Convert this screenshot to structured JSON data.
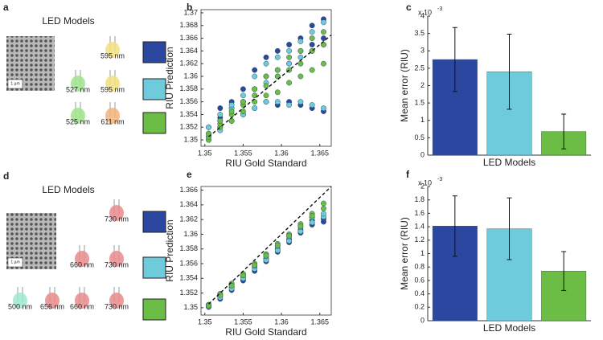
{
  "led_panels": [
    {
      "label": "a",
      "title": "LED Models",
      "scale_bar": "1 µm",
      "rows": [
        {
          "swatch": "#2b47a0",
          "leds": [
            {
              "label": "595 nm",
              "color": "#f2e27e"
            }
          ]
        },
        {
          "swatch": "#6dcbdc",
          "leds": [
            {
              "label": "527 nm",
              "color": "#9fe38a"
            },
            {
              "label": "595 nm",
              "color": "#f2e27e"
            }
          ]
        },
        {
          "swatch": "#6bbd45",
          "leds": [
            {
              "label": "525 nm",
              "color": "#9fe38a"
            },
            {
              "label": "611 nm",
              "color": "#f4b27a"
            }
          ]
        }
      ]
    },
    {
      "label": "d",
      "title": "LED Models",
      "scale_bar": "1 µm",
      "rows": [
        {
          "swatch": "#2b47a0",
          "leds": [
            {
              "label": "730 nm",
              "color": "#e98b8b"
            }
          ]
        },
        {
          "swatch": "#6dcbdc",
          "leds": [
            {
              "label": "660 nm",
              "color": "#e98b8b"
            },
            {
              "label": "730 nm",
              "color": "#e98b8b"
            }
          ]
        },
        {
          "swatch": "#6bbd45",
          "leds": [
            {
              "label": "500 nm",
              "color": "#9ee8cf"
            },
            {
              "label": "656 nm",
              "color": "#e98b8b"
            },
            {
              "label": "660 nm",
              "color": "#e98b8b"
            },
            {
              "label": "730 nm",
              "color": "#e98b8b"
            }
          ]
        }
      ]
    }
  ],
  "chart_data": [
    {
      "type": "scatter",
      "label": "b",
      "xlabel": "RIU Gold Standard",
      "ylabel": "RIU Prediction",
      "xlim": [
        1.3495,
        1.3665
      ],
      "xticks": [
        1.35,
        1.355,
        1.36,
        1.365
      ],
      "ylim": [
        1.349,
        1.3705
      ],
      "yticks": [
        1.35,
        1.352,
        1.354,
        1.356,
        1.358,
        1.36,
        1.362,
        1.364,
        1.366,
        1.368,
        1.37
      ],
      "reference_line": {
        "x": [
          1.3505,
          1.3665
        ],
        "y": [
          1.3505,
          1.3665
        ]
      },
      "series": [
        {
          "color": "#2b47a0",
          "x": [
            1.3505,
            1.3505,
            1.3505,
            1.352,
            1.352,
            1.352,
            1.3535,
            1.3535,
            1.3535,
            1.355,
            1.355,
            1.355,
            1.3565,
            1.3565,
            1.3565,
            1.358,
            1.358,
            1.358,
            1.3595,
            1.3595,
            1.3595,
            1.361,
            1.361,
            1.361,
            1.3625,
            1.3625,
            1.3625,
            1.364,
            1.364,
            1.364,
            1.3655,
            1.3655,
            1.3655
          ],
          "y": [
            1.35,
            1.352,
            1.3505,
            1.352,
            1.355,
            1.3535,
            1.353,
            1.356,
            1.355,
            1.354,
            1.358,
            1.356,
            1.355,
            1.361,
            1.358,
            1.356,
            1.363,
            1.36,
            1.3555,
            1.364,
            1.361,
            1.356,
            1.365,
            1.362,
            1.3555,
            1.366,
            1.364,
            1.355,
            1.368,
            1.365,
            1.3545,
            1.369,
            1.366
          ]
        },
        {
          "color": "#6dcbdc",
          "x": [
            1.3505,
            1.3505,
            1.3505,
            1.352,
            1.352,
            1.352,
            1.3535,
            1.3535,
            1.3535,
            1.355,
            1.355,
            1.355,
            1.3565,
            1.3565,
            1.3565,
            1.358,
            1.358,
            1.358,
            1.3595,
            1.3595,
            1.3595,
            1.361,
            1.361,
            1.361,
            1.3625,
            1.3625,
            1.3625,
            1.364,
            1.364,
            1.364,
            1.3655,
            1.3655,
            1.3655
          ],
          "y": [
            1.3505,
            1.351,
            1.352,
            1.3515,
            1.353,
            1.354,
            1.353,
            1.355,
            1.3555,
            1.354,
            1.357,
            1.356,
            1.355,
            1.358,
            1.36,
            1.356,
            1.359,
            1.362,
            1.356,
            1.36,
            1.363,
            1.3555,
            1.362,
            1.364,
            1.356,
            1.363,
            1.3655,
            1.3555,
            1.364,
            1.367,
            1.355,
            1.365,
            1.3685
          ]
        },
        {
          "color": "#6bbd45",
          "x": [
            1.3505,
            1.3505,
            1.3505,
            1.352,
            1.352,
            1.352,
            1.3535,
            1.3535,
            1.3535,
            1.355,
            1.355,
            1.355,
            1.3565,
            1.3565,
            1.3565,
            1.358,
            1.358,
            1.358,
            1.3595,
            1.3595,
            1.3595,
            1.361,
            1.361,
            1.361,
            1.3625,
            1.3625,
            1.3625,
            1.364,
            1.364,
            1.364,
            1.3655,
            1.3655,
            1.3655
          ],
          "y": [
            1.35,
            1.3505,
            1.351,
            1.352,
            1.3525,
            1.353,
            1.353,
            1.354,
            1.3545,
            1.3545,
            1.3555,
            1.356,
            1.356,
            1.357,
            1.358,
            1.357,
            1.3585,
            1.36,
            1.3575,
            1.36,
            1.361,
            1.359,
            1.361,
            1.363,
            1.36,
            1.362,
            1.364,
            1.361,
            1.364,
            1.366,
            1.362,
            1.365,
            1.367
          ]
        }
      ]
    },
    {
      "type": "bar",
      "label": "c",
      "xlabel": "LED Models",
      "ylabel": "Mean error (RIU)",
      "scale_note": "x 10",
      "scale_exponent": "-3",
      "ylim": [
        0,
        4
      ],
      "yticks": [
        0,
        0.5,
        1,
        1.5,
        2,
        2.5,
        3,
        3.5,
        4
      ],
      "values": [
        2.75,
        2.4,
        0.68
      ],
      "errors": [
        0.92,
        1.08,
        0.5
      ],
      "colors": [
        "#2b47a0",
        "#6dcbdc",
        "#6bbd45"
      ]
    },
    {
      "type": "scatter",
      "label": "e",
      "xlabel": "RIU Gold Standard",
      "ylabel": "RIU Prediction",
      "xlim": [
        1.3495,
        1.3665
      ],
      "xticks": [
        1.35,
        1.355,
        1.36,
        1.365
      ],
      "ylim": [
        1.349,
        1.3665
      ],
      "yticks": [
        1.35,
        1.352,
        1.354,
        1.356,
        1.358,
        1.36,
        1.362,
        1.364,
        1.366
      ],
      "reference_line": {
        "x": [
          1.3505,
          1.3665
        ],
        "y": [
          1.3505,
          1.3665
        ]
      },
      "series": [
        {
          "color": "#2b47a0",
          "x": [
            1.3505,
            1.3505,
            1.352,
            1.352,
            1.3535,
            1.3535,
            1.355,
            1.355,
            1.3565,
            1.3565,
            1.358,
            1.358,
            1.3595,
            1.3595,
            1.361,
            1.361,
            1.3625,
            1.3625,
            1.364,
            1.364,
            1.3655,
            1.3655
          ],
          "y": [
            1.3503,
            1.3501,
            1.3516,
            1.3512,
            1.3528,
            1.3524,
            1.3541,
            1.3537,
            1.3554,
            1.355,
            1.3567,
            1.3563,
            1.358,
            1.3576,
            1.3593,
            1.3589,
            1.3606,
            1.3602,
            1.3619,
            1.3613,
            1.3621,
            1.3617
          ]
        },
        {
          "color": "#6dcbdc",
          "x": [
            1.3505,
            1.3505,
            1.352,
            1.352,
            1.3535,
            1.3535,
            1.355,
            1.355,
            1.3565,
            1.3565,
            1.358,
            1.358,
            1.3595,
            1.3595,
            1.361,
            1.361,
            1.3625,
            1.3625,
            1.364,
            1.364,
            1.3655,
            1.3655
          ],
          "y": [
            1.3502,
            1.3504,
            1.3514,
            1.3518,
            1.3526,
            1.3531,
            1.354,
            1.3544,
            1.3553,
            1.3557,
            1.3565,
            1.357,
            1.3578,
            1.3584,
            1.3591,
            1.3597,
            1.3604,
            1.361,
            1.3616,
            1.3623,
            1.3624,
            1.3628
          ]
        },
        {
          "color": "#6bbd45",
          "x": [
            1.3505,
            1.3505,
            1.352,
            1.352,
            1.3535,
            1.3535,
            1.355,
            1.355,
            1.3565,
            1.3565,
            1.358,
            1.358,
            1.3595,
            1.3595,
            1.361,
            1.361,
            1.3625,
            1.3625,
            1.364,
            1.364,
            1.3655,
            1.3655
          ],
          "y": [
            1.3504,
            1.3503,
            1.3519,
            1.3517,
            1.3533,
            1.353,
            1.3546,
            1.3544,
            1.356,
            1.3558,
            1.3573,
            1.3571,
            1.3587,
            1.3585,
            1.36,
            1.3598,
            1.3614,
            1.3611,
            1.3628,
            1.3625,
            1.3642,
            1.3635
          ]
        }
      ]
    },
    {
      "type": "bar",
      "label": "f",
      "xlabel": "LED Models",
      "ylabel": "Mean error (RIU)",
      "scale_note": "x 10",
      "scale_exponent": "-3",
      "ylim": [
        0,
        2
      ],
      "yticks": [
        0,
        0.2,
        0.4,
        0.6,
        0.8,
        1,
        1.2,
        1.4,
        1.6,
        1.8,
        2
      ],
      "values": [
        1.41,
        1.37,
        0.74
      ],
      "errors": [
        0.45,
        0.46,
        0.29
      ],
      "colors": [
        "#2b47a0",
        "#6dcbdc",
        "#6bbd45"
      ]
    }
  ]
}
